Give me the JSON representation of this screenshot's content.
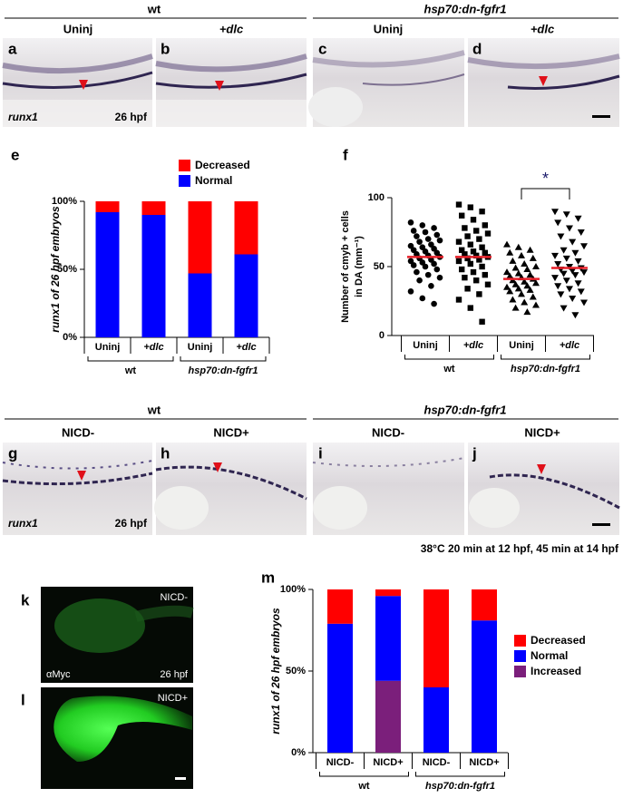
{
  "top_row": {
    "groups": [
      "wt",
      "hsp70:dn-fgfr1"
    ],
    "columns": [
      "Uninj",
      "+dlc",
      "Uninj",
      "+dlc"
    ],
    "panels": [
      {
        "label": "a",
        "gene": "runx1",
        "stage": "26 hpf"
      },
      {
        "label": "b"
      },
      {
        "label": "c"
      },
      {
        "label": "d"
      }
    ]
  },
  "chart_data": [
    {
      "type": "bar",
      "stacked": true,
      "panel_label": "e",
      "ylabel": "runx1 of 26 hpf embryos",
      "categories": [
        "Uninj",
        "+dlc",
        "Uninj",
        "+dlc"
      ],
      "groups": [
        "wt",
        "hsp70:dn-fgfr1"
      ],
      "series": [
        {
          "name": "Normal",
          "color": "#0000ff",
          "values": [
            92,
            90,
            47,
            61
          ]
        },
        {
          "name": "Decreased",
          "color": "#ff0000",
          "values": [
            8,
            10,
            53,
            39
          ]
        }
      ],
      "ylim": [
        0,
        100
      ],
      "yticks": [
        {
          "value": 0,
          "label": "0%"
        },
        {
          "value": 50,
          "label": "50%"
        },
        {
          "value": 100,
          "label": "100%"
        }
      ]
    },
    {
      "type": "dot",
      "panel_label": "f",
      "ylabel": [
        "Number of cmyb + cells",
        "in DA (mm⁻¹)"
      ],
      "categories": [
        "Uninj",
        "+dlc",
        "Uninj",
        "+dlc"
      ],
      "groups": [
        "wt",
        "hsp70:dn-fgfr1"
      ],
      "markers": [
        "circle",
        "square",
        "triangle-up",
        "triangle-down"
      ],
      "points": [
        [
          82,
          80,
          78,
          76,
          75,
          73,
          72,
          70,
          69,
          68,
          66,
          65,
          64,
          63,
          62,
          61,
          60,
          59,
          58,
          57,
          56,
          55,
          54,
          53,
          52,
          51,
          50,
          48,
          46,
          44,
          42,
          40,
          36,
          32,
          27,
          23
        ],
        [
          95,
          93,
          90,
          87,
          84,
          80,
          78,
          76,
          74,
          72,
          70,
          68,
          66,
          64,
          62,
          61,
          60,
          59,
          58,
          57,
          56,
          55,
          54,
          52,
          50,
          48,
          46,
          44,
          42,
          40,
          37,
          34,
          30,
          26,
          20,
          10
        ],
        [
          66,
          64,
          62,
          60,
          58,
          56,
          54,
          52,
          50,
          49,
          48,
          46,
          45,
          44,
          43,
          42,
          41,
          40,
          39,
          38,
          37,
          36,
          35,
          34,
          33,
          32,
          30,
          28,
          26,
          24,
          22,
          20,
          17
        ],
        [
          90,
          88,
          85,
          82,
          78,
          75,
          72,
          68,
          65,
          62,
          60,
          58,
          56,
          54,
          52,
          50,
          49,
          48,
          47,
          46,
          45,
          44,
          42,
          40,
          38,
          36,
          34,
          32,
          30,
          27,
          24,
          20,
          15
        ]
      ],
      "means": [
        57,
        57,
        41,
        49
      ],
      "mean_color": "#e8202a",
      "significance": {
        "label": "*",
        "between": [
          2,
          3
        ]
      },
      "ylim": [
        0,
        100
      ],
      "yticks": [
        0,
        50,
        100
      ]
    },
    {
      "type": "bar",
      "stacked": true,
      "panel_label": "m",
      "ylabel": "runx1 of 26 hpf embryos",
      "categories": [
        "NICD-",
        "NICD+",
        "NICD-",
        "NICD+"
      ],
      "groups": [
        "wt",
        "hsp70:dn-fgfr1"
      ],
      "series": [
        {
          "name": "Increased",
          "color": "#7b1f7b",
          "values": [
            0,
            44,
            0,
            0
          ]
        },
        {
          "name": "Normal",
          "color": "#0000ff",
          "values": [
            79,
            52,
            40,
            81
          ]
        },
        {
          "name": "Decreased",
          "color": "#ff0000",
          "values": [
            21,
            4,
            60,
            19
          ]
        }
      ],
      "ylim": [
        0,
        100
      ],
      "yticks": [
        {
          "value": 0,
          "label": "0%"
        },
        {
          "value": 50,
          "label": "50%"
        },
        {
          "value": 100,
          "label": "100%"
        }
      ]
    }
  ],
  "middle_row": {
    "groups": [
      "wt",
      "hsp70:dn-fgfr1"
    ],
    "columns": [
      "NICD-",
      "NICD+",
      "NICD-",
      "NICD+"
    ],
    "panels": [
      {
        "label": "g",
        "gene": "runx1",
        "stage": "26 hpf"
      },
      {
        "label": "h"
      },
      {
        "label": "i"
      },
      {
        "label": "j"
      }
    ]
  },
  "condition": "38°C 20 min at 12 hpf, 45 min at 14 hpf",
  "bottom_images": {
    "panels": [
      {
        "label": "k",
        "condition": "NICD-",
        "stain": "αMyc",
        "stage": "26 hpf"
      },
      {
        "label": "l",
        "condition": "NICD+"
      }
    ]
  }
}
